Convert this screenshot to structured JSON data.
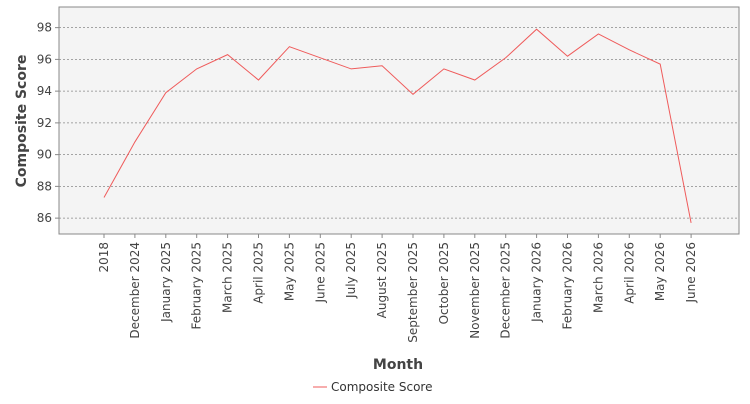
{
  "chart_data": {
    "type": "line",
    "title": "",
    "xlabel": "Month",
    "ylabel": "Composite Score",
    "ylim": [
      85,
      99.3
    ],
    "yticks": [
      86,
      88,
      90,
      92,
      94,
      96,
      98
    ],
    "grid": true,
    "legend_position": "bottom-center",
    "categories": [
      "2018",
      "December 2024",
      "January 2025",
      "February 2025",
      "March 2025",
      "April 2025",
      "May 2025",
      "June 2025",
      "July 2025",
      "August 2025",
      "September 2025",
      "October 2025",
      "November 2025",
      "December 2025",
      "January 2026",
      "February 2026",
      "March 2026",
      "April 2026",
      "May 2026",
      "June 2026"
    ],
    "series": [
      {
        "name": "Composite Score",
        "color": "#ef5b5b",
        "values": [
          87.3,
          90.8,
          93.9,
          95.4,
          96.3,
          94.7,
          96.8,
          96.1,
          95.4,
          95.6,
          93.8,
          95.4,
          94.7,
          96.1,
          97.9,
          96.2,
          97.6,
          96.6,
          95.7,
          85.7
        ]
      }
    ],
    "colors": {
      "plot_background": "#f4f4f4",
      "grid": "#888888",
      "axis": "#888888"
    }
  }
}
